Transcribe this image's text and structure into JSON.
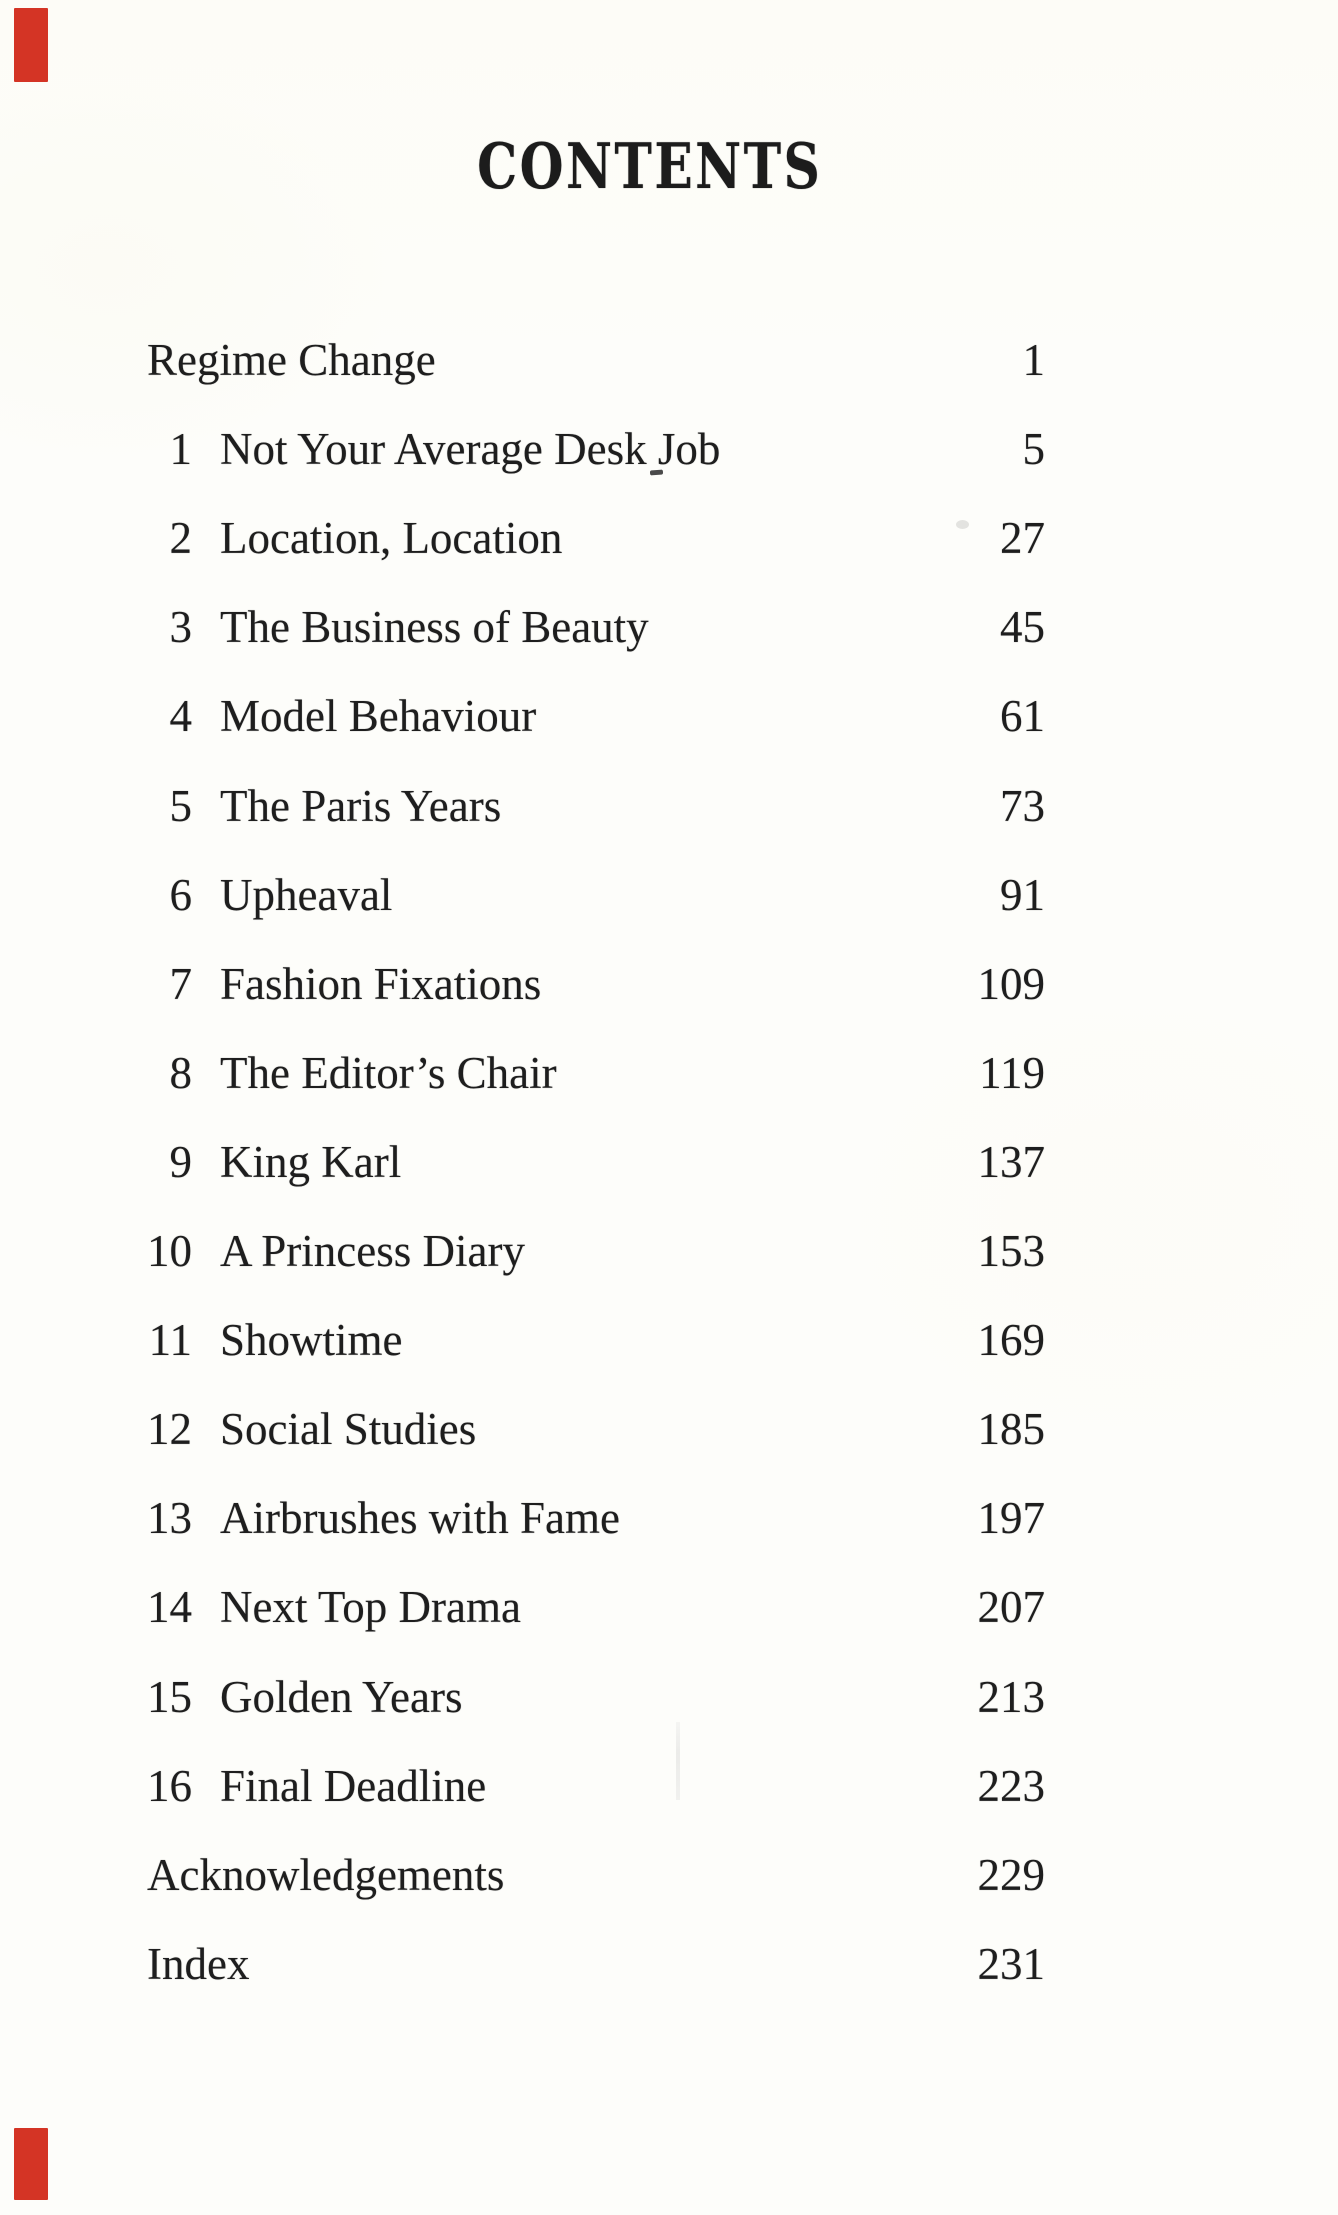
{
  "page": {
    "title": "CONTENTS",
    "paper_color": "#fdfdfa",
    "ink_color": "#1e1e1e",
    "edge_mark_color": "#d43425"
  },
  "toc": {
    "entries": [
      {
        "num": "",
        "label": "Regime Change",
        "page": "1"
      },
      {
        "num": "1",
        "label": "Not Your Average Desk Job",
        "page": "5"
      },
      {
        "num": "2",
        "label": "Location, Location",
        "page": "27"
      },
      {
        "num": "3",
        "label": "The Business of Beauty",
        "page": "45"
      },
      {
        "num": "4",
        "label": "Model Behaviour",
        "page": "61"
      },
      {
        "num": "5",
        "label": "The Paris Years",
        "page": "73"
      },
      {
        "num": "6",
        "label": "Upheaval",
        "page": "91"
      },
      {
        "num": "7",
        "label": "Fashion Fixations",
        "page": "109"
      },
      {
        "num": "8",
        "label": "The Editor’s Chair",
        "page": "119"
      },
      {
        "num": "9",
        "label": "King Karl",
        "page": "137"
      },
      {
        "num": "10",
        "label": "A Princess Diary",
        "page": "153"
      },
      {
        "num": "11",
        "label": "Showtime",
        "page": "169"
      },
      {
        "num": "12",
        "label": "Social Studies",
        "page": "185"
      },
      {
        "num": "13",
        "label": "Airbrushes with Fame",
        "page": "197"
      },
      {
        "num": "14",
        "label": "Next Top Drama",
        "page": "207"
      },
      {
        "num": "15",
        "label": "Golden Years",
        "page": "213"
      },
      {
        "num": "16",
        "label": "Final Deadline",
        "page": "223"
      },
      {
        "num": "",
        "label": "Acknowledgements",
        "page": "229"
      },
      {
        "num": "",
        "label": "Index",
        "page": "231"
      }
    ]
  }
}
